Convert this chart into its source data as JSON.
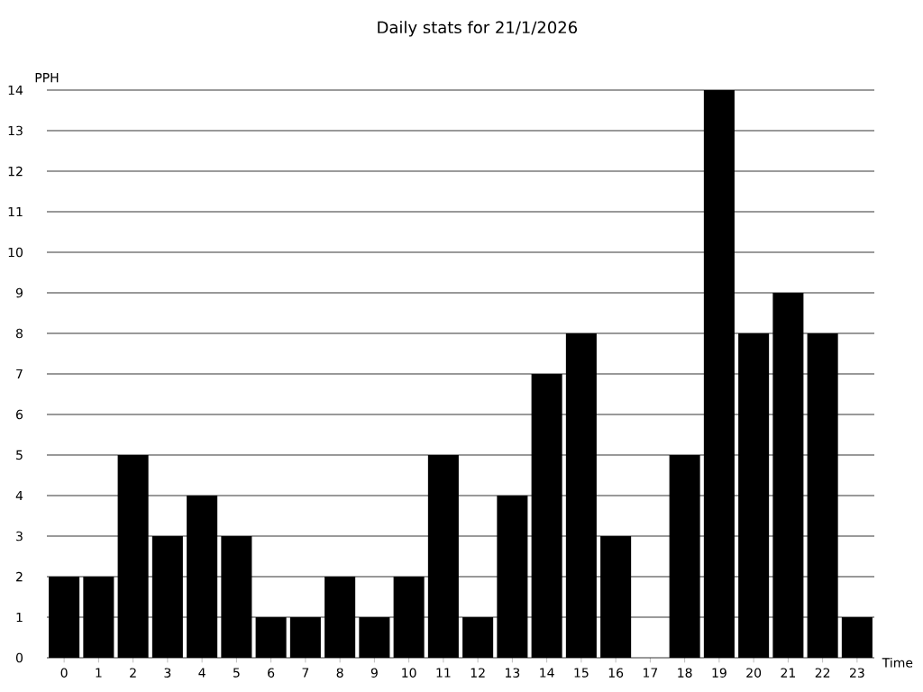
{
  "chart_data": {
    "type": "bar",
    "title": "Daily stats for 21/1/2026",
    "xlabel": "Time",
    "ylabel": "PPH",
    "categories": [
      "0",
      "1",
      "2",
      "3",
      "4",
      "5",
      "6",
      "7",
      "8",
      "9",
      "10",
      "11",
      "12",
      "13",
      "14",
      "15",
      "16",
      "17",
      "18",
      "19",
      "20",
      "21",
      "22",
      "23"
    ],
    "values": [
      2,
      2,
      5,
      3,
      4,
      3,
      1,
      1,
      2,
      1,
      2,
      5,
      1,
      4,
      7,
      8,
      3,
      0,
      5,
      14,
      8,
      9,
      8,
      1
    ],
    "color": "#000000",
    "ylim": [
      0,
      14
    ],
    "yticks": [
      0,
      1,
      2,
      3,
      4,
      5,
      6,
      7,
      8,
      9,
      10,
      11,
      12,
      13,
      14
    ],
    "grid": "y"
  }
}
